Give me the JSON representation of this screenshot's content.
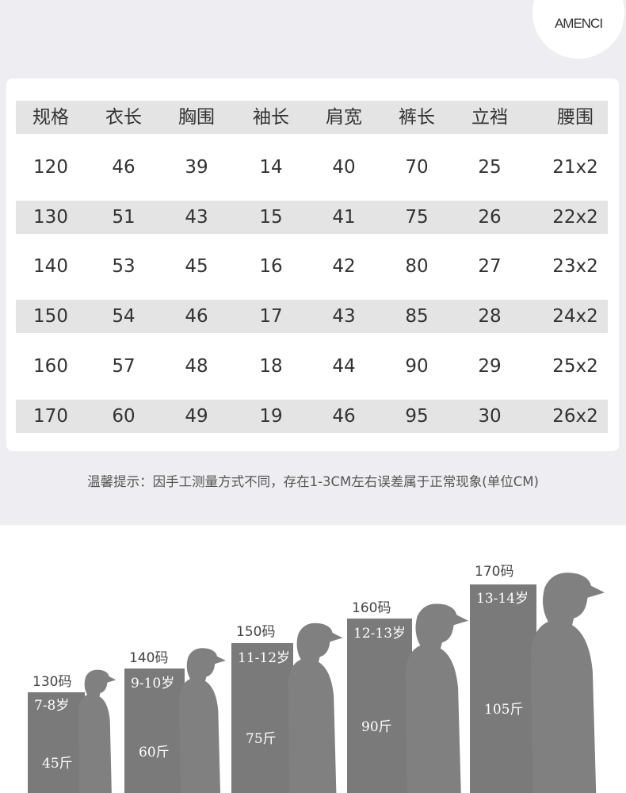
{
  "brand": {
    "logo_text": "AMENCI"
  },
  "colors": {
    "page_bg": "#eeedf1",
    "row_shade": "#e4e4e4",
    "figure_gray": "#7a7a7a",
    "silhouette": "#808080"
  },
  "size_table": {
    "headers": [
      "规格",
      "衣长",
      "胸围",
      "袖长",
      "肩宽",
      "裤长",
      "立裆",
      "腰围"
    ],
    "rows": [
      [
        "120",
        "46",
        "39",
        "14",
        "40",
        "70",
        "25",
        "21x2"
      ],
      [
        "130",
        "51",
        "43",
        "15",
        "41",
        "75",
        "26",
        "22x2"
      ],
      [
        "140",
        "53",
        "45",
        "16",
        "42",
        "80",
        "27",
        "23x2"
      ],
      [
        "150",
        "54",
        "46",
        "17",
        "43",
        "85",
        "28",
        "24x2"
      ],
      [
        "160",
        "57",
        "48",
        "18",
        "44",
        "90",
        "29",
        "25x2"
      ],
      [
        "170",
        "60",
        "49",
        "19",
        "46",
        "95",
        "30",
        "26x2"
      ]
    ]
  },
  "notice": "温馨提示：因手工测量方式不同，存在1-3CM左右误差属于正常现象(单位CM)",
  "growth_chart": {
    "items": [
      {
        "size": "130码",
        "age": "7-8岁",
        "weight": "45斤"
      },
      {
        "size": "140码",
        "age": "9-10岁",
        "weight": "60斤"
      },
      {
        "size": "150码",
        "age": "11-12岁",
        "weight": "75斤"
      },
      {
        "size": "160码",
        "age": "12-13岁",
        "weight": "90斤"
      },
      {
        "size": "170码",
        "age": "13-14岁",
        "weight": "105斤"
      }
    ]
  }
}
